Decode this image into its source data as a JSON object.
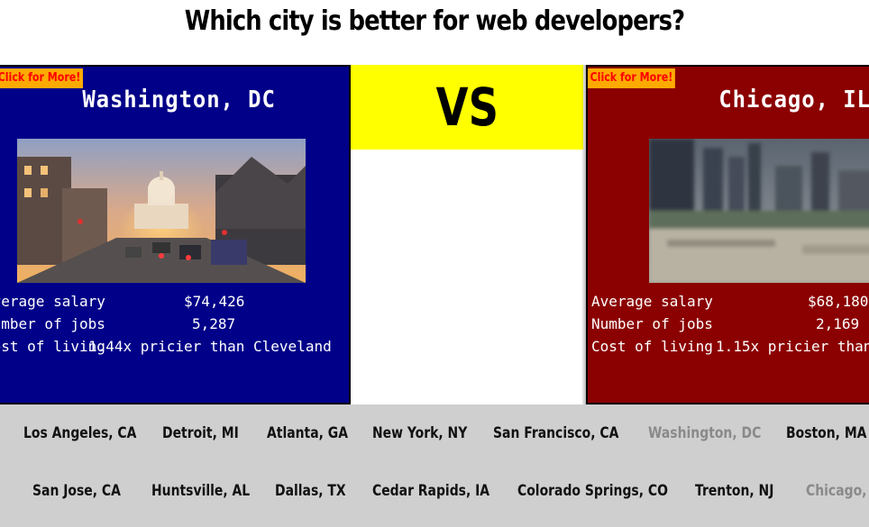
{
  "page": {
    "title": "Which city is better for web developers?"
  },
  "left_city": {
    "more_label": "Click for More!",
    "name": "Washington, DC",
    "stats": [
      {
        "label": "Average salary",
        "value": "$74,426"
      },
      {
        "label": "Number of jobs",
        "value": "5,287"
      },
      {
        "label": "Cost of living",
        "value": "1.44x pricier than Cleveland"
      }
    ]
  },
  "vs": {
    "label": "VS"
  },
  "right_city": {
    "more_label": "Click for More!",
    "name": "Chicago, IL",
    "stats": [
      {
        "label": "Average salary",
        "value": "$68,180"
      },
      {
        "label": "Number of jobs",
        "value": "2,169"
      },
      {
        "label": "Cost of living",
        "value": "1.15x pricier than"
      }
    ]
  },
  "city_bar": {
    "row1": [
      "Los Angeles, CA",
      "Detroit, MI",
      "Atlanta, GA",
      "New York, NY",
      "San Francisco, CA",
      "Washington, DC",
      "Boston, MA"
    ],
    "row2": [
      "San Jose, CA",
      "Huntsville, AL",
      "Dallas, TX",
      "Cedar Rapids, IA",
      "Colorado Springs, CO",
      "Trenton, NJ",
      "Chicago, IL"
    ],
    "selected": [
      "Washington, DC",
      "Chicago, IL"
    ]
  },
  "colors": {
    "left_panel": "#000088",
    "right_panel": "#8b0000",
    "vs_box": "#ffff00",
    "more_button": "#ffaa00",
    "city_bar": "#cfcfcf"
  }
}
